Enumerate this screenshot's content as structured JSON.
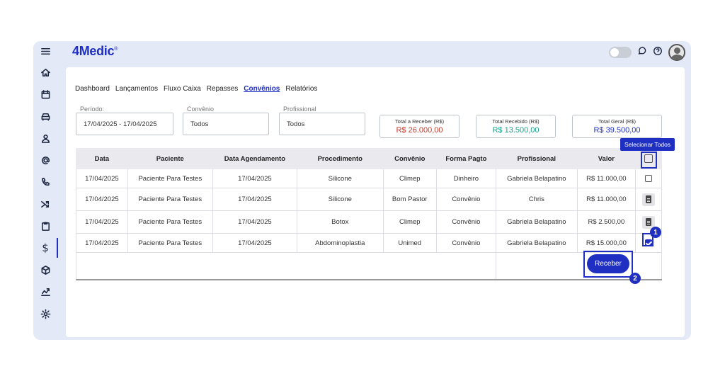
{
  "app": {
    "logo": "4Medic",
    "logo_mark": "®"
  },
  "sidebar": {
    "items": [
      {
        "icon": "menu-icon"
      },
      {
        "icon": "home-icon"
      },
      {
        "icon": "calendar-icon"
      },
      {
        "icon": "car-icon"
      },
      {
        "icon": "user-icon"
      },
      {
        "icon": "at-icon"
      },
      {
        "icon": "phone-icon"
      },
      {
        "icon": "shuffle-icon"
      },
      {
        "icon": "clipboard-icon"
      },
      {
        "icon": "dollar-icon",
        "label": "$",
        "active": true
      },
      {
        "icon": "box-icon"
      },
      {
        "icon": "chart-icon"
      },
      {
        "icon": "gear-icon"
      }
    ]
  },
  "tabs": [
    "Dashboard",
    "Lançamentos",
    "Fluxo Caixa",
    "Repasses",
    "Convênios",
    "Relatórios"
  ],
  "active_tab": "Convênios",
  "filters": {
    "periodo": {
      "label": "Período:",
      "value": "17/04/2025 - 17/04/2025"
    },
    "convenio": {
      "label": "Convênio",
      "value": "Todos"
    },
    "profissional": {
      "label": "Profissional",
      "value": "Todos"
    }
  },
  "totals": {
    "a_receber": {
      "label": "Total a Receber (R$)",
      "value": "R$ 26.000,00",
      "color": "#c0392b"
    },
    "recebido": {
      "label": "Total Recebido (R$)",
      "value": "R$ 13.500,00",
      "color": "#16a085"
    },
    "geral": {
      "label": "Total Geral (R$)",
      "value": "R$ 39.500,00",
      "color": "#1f2fc2"
    }
  },
  "table": {
    "headers": [
      "Data",
      "Paciente",
      "Data Agendamento",
      "Procedimento",
      "Convênio",
      "Forma Pagto",
      "Profissional",
      "Valor"
    ],
    "rows": [
      [
        "17/04/2025",
        "Paciente Para Testes",
        "17/04/2025",
        "Silicone",
        "Climep",
        "Dinheiro",
        "Gabriela Belapatino",
        "R$ 11.000,00"
      ],
      [
        "17/04/2025",
        "Paciente Para Testes",
        "17/04/2025",
        "Silicone",
        "Bom Pastor",
        "Convênio",
        "Chris",
        "R$ 11.000,00"
      ],
      [
        "17/04/2025",
        "Paciente Para Testes",
        "17/04/2025",
        "Botox",
        "Climep",
        "Convênio",
        "Gabriela Belapatino",
        "R$ 2.500,00"
      ],
      [
        "17/04/2025",
        "Paciente Para Testes",
        "17/04/2025",
        "Abdominoplastia",
        "Unimed",
        "Convênio",
        "Gabriela Belapatino",
        "R$ 15.000,00"
      ]
    ],
    "row_actions": [
      "checkbox",
      "document",
      "document",
      "checkbox-checked"
    ]
  },
  "tooltip": "Selecionar Todos",
  "receber_button": "Receber",
  "badges": [
    "1",
    "2"
  ]
}
